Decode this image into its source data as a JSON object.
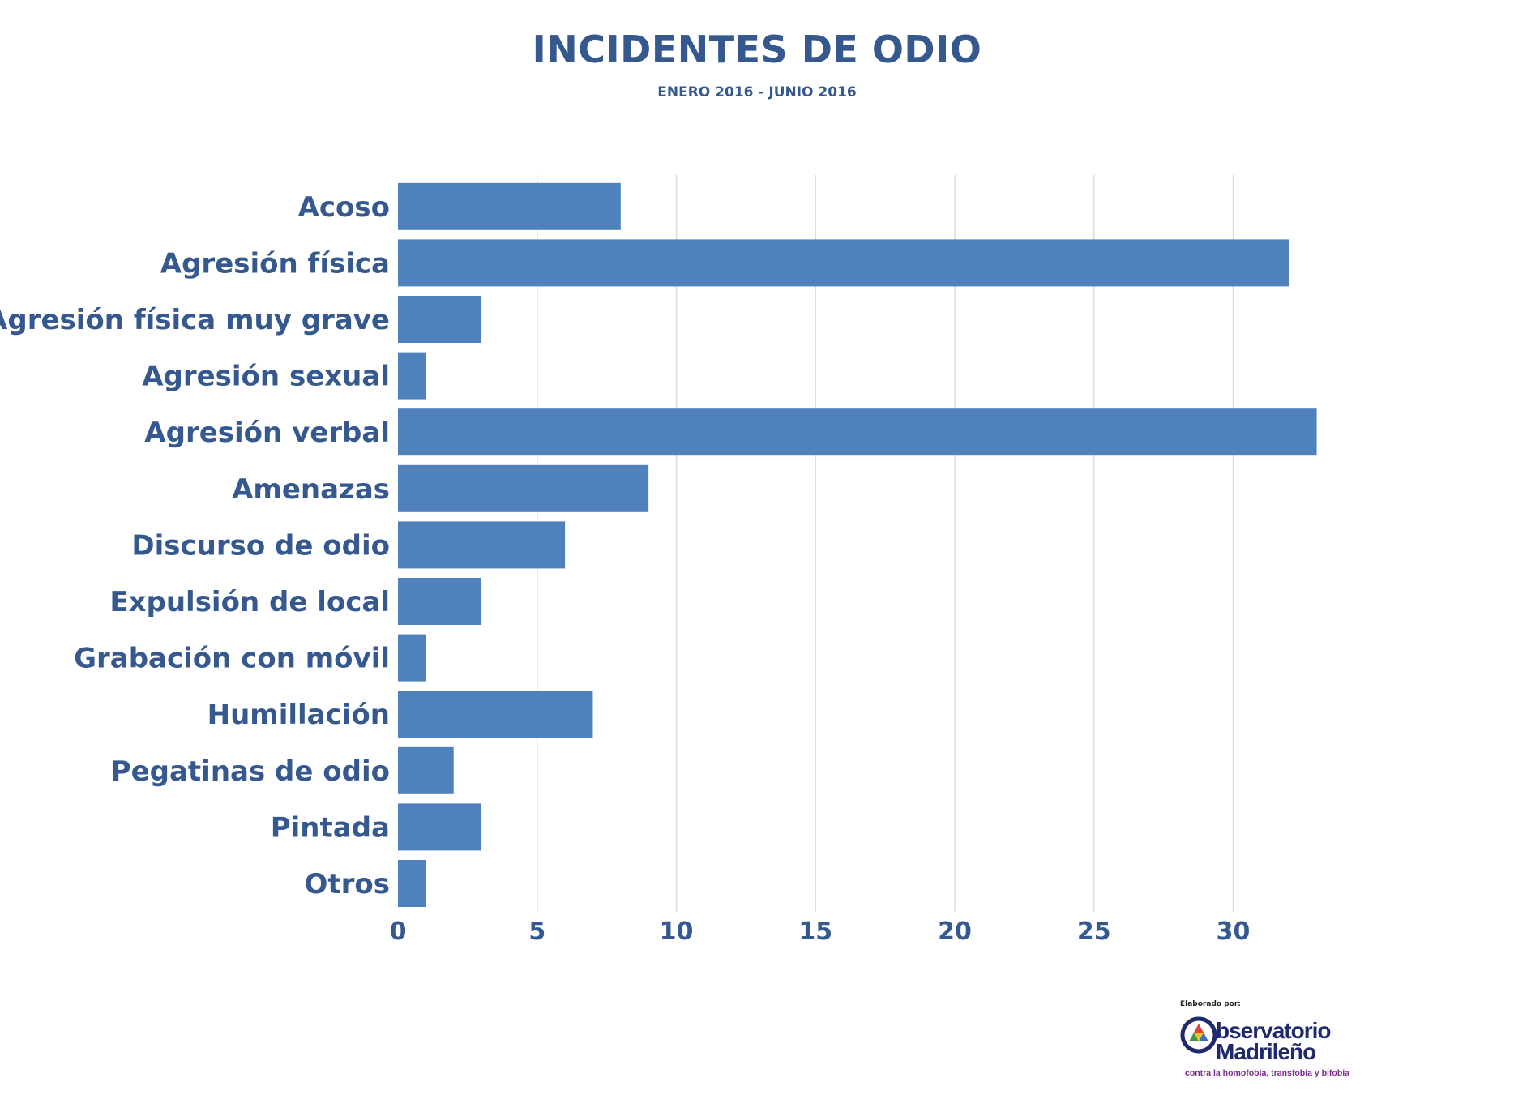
{
  "chart_data": {
    "type": "bar",
    "orientation": "horizontal",
    "title": "INCIDENTES DE ODIO",
    "subtitle": "ENERO 2016 - JUNIO 2016",
    "categories": [
      "Acoso",
      "Agresión física",
      "Agresión física muy grave",
      "Agresión sexual",
      "Agresión verbal",
      "Amenazas",
      "Discurso de odio",
      "Expulsión de local",
      "Grabación con móvil",
      "Humillación",
      "Pegatinas de odio",
      "Pintada",
      "Otros"
    ],
    "values": [
      8,
      32,
      3,
      1,
      33,
      9,
      6,
      3,
      1,
      7,
      2,
      3,
      1
    ],
    "xlim": [
      0,
      35
    ],
    "xticks": [
      0,
      5,
      10,
      15,
      20,
      25,
      30
    ],
    "grid": true,
    "bar_color": "#4f81bd"
  },
  "credit": {
    "label": "Elaborado por:",
    "name_line1": "bservatorio",
    "name_line2": "Madrileño",
    "tagline": "contra la homofobia, transfobia y bifobia"
  }
}
